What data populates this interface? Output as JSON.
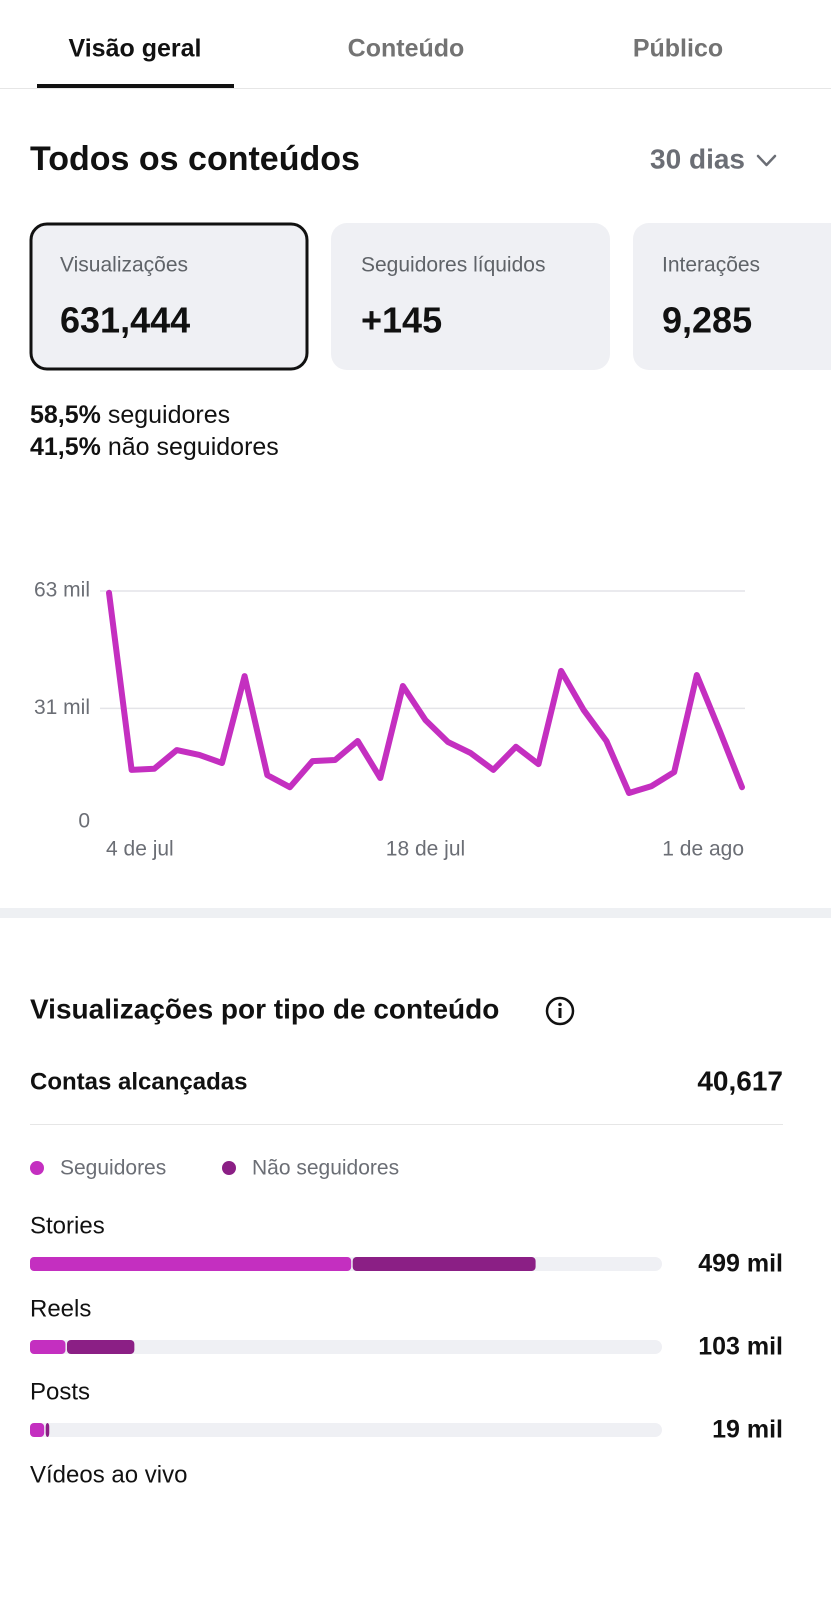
{
  "tabs": [
    {
      "label": "Visão geral",
      "active": true
    },
    {
      "label": "Conteúdo",
      "active": false
    },
    {
      "label": "Público",
      "active": false
    }
  ],
  "section_title": "Todos os conteúdos",
  "period": "30 dias",
  "cards": [
    {
      "label": "Visualizações",
      "value": "631,444",
      "selected": true
    },
    {
      "label": "Seguidores líquidos",
      "value": "+145",
      "selected": false
    },
    {
      "label": "Interações",
      "value": "9,285",
      "selected": false
    }
  ],
  "audience": [
    {
      "percent": "58,5%",
      "label": "seguidores"
    },
    {
      "percent": "41,5%",
      "label": "não seguidores"
    }
  ],
  "breakdown": {
    "title": "Visualizações por tipo de conteúdo",
    "reach_label": "Contas alcançadas",
    "reach_value": "40,617"
  },
  "chart_data": [
    {
      "type": "line",
      "color": "#c42fc0",
      "grid": true,
      "categories": [
        "4 de jul",
        null,
        null,
        null,
        null,
        null,
        null,
        null,
        null,
        null,
        null,
        null,
        null,
        null,
        "18 de jul",
        null,
        null,
        null,
        null,
        null,
        null,
        null,
        null,
        null,
        null,
        null,
        null,
        null,
        "1 de ago"
      ],
      "values": [
        62.5,
        14.2,
        14.5,
        19.6,
        18.3,
        16.1,
        39.8,
        12.8,
        9.5,
        16.6,
        16.9,
        22.1,
        12.0,
        37.1,
        27.8,
        21.8,
        18.8,
        14.2,
        20.5,
        15.8,
        41.2,
        30.5,
        22.1,
        7.9,
        9.8,
        13.6,
        40.1,
        25.1,
        9.5
      ],
      "ylim": [
        0,
        63
      ],
      "yticks": [
        0,
        {
          "value": 31,
          "label": "31 mil"
        },
        {
          "value": 63,
          "label": "63 mil"
        }
      ]
    },
    {
      "type": "bar",
      "orientation": "horizontal",
      "stacked": true,
      "categories": [
        "Stories",
        "Reels",
        "Posts",
        "Vídeos ao vivo"
      ],
      "series": [
        {
          "name": "Seguidores",
          "color": "#c42fc0",
          "values": [
            317,
            35,
            14,
            null
          ]
        },
        {
          "name": "Não seguidores",
          "color": "#8b1f85",
          "values": [
            182,
            68,
            5,
            null
          ]
        }
      ],
      "totals": [
        499,
        103,
        19,
        null
      ],
      "value_labels": [
        "499 mil",
        "103 mil",
        "19 mil",
        null
      ]
    }
  ]
}
